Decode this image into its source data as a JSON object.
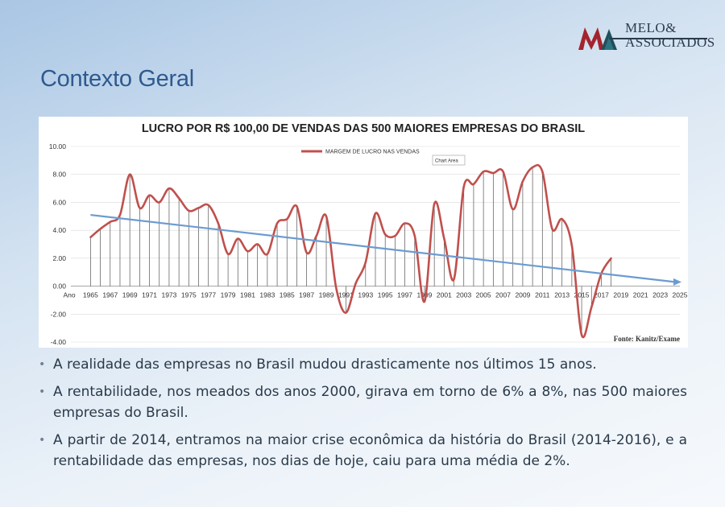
{
  "logo": {
    "line1": "MELO&",
    "line2": "ASSOCIADOS"
  },
  "header": {
    "title": "Contexto Geral"
  },
  "chart_data": {
    "type": "line",
    "title": "LUCRO POR R$ 100,00 DE VENDAS DAS 500 MAIORES EMPRESAS DO BRASIL",
    "legend": "MARGEM DE LUCRO NAS VENDAS",
    "legend_placement": "top-center",
    "annotation": "Chart Area",
    "source": "Fonte: Kanitz/Exame",
    "x_label_first": "Ano",
    "x_tick_labels": [
      "1965",
      "1967",
      "1969",
      "1971",
      "1973",
      "1975",
      "1977",
      "1979",
      "1981",
      "1983",
      "1985",
      "1987",
      "1989",
      "1991",
      "1993",
      "1995",
      "1997",
      "1999",
      "2001",
      "2003",
      "2005",
      "2007",
      "2009",
      "2011",
      "2013",
      "2015",
      "2017",
      "2019",
      "2021",
      "2023",
      "2025"
    ],
    "y_tick_labels": [
      "10.00",
      "8.00",
      "6.00",
      "4.00",
      "2.00",
      "0.00",
      "-2.00",
      "-4.00"
    ],
    "ylim": [
      -4,
      10
    ],
    "xlim": [
      1963,
      2025
    ],
    "grid": true,
    "series": [
      {
        "name": "MARGEM DE LUCRO NAS VENDAS",
        "color": "#c0504d",
        "x": [
          1965,
          1966,
          1967,
          1968,
          1969,
          1970,
          1971,
          1972,
          1973,
          1974,
          1975,
          1976,
          1977,
          1978,
          1979,
          1980,
          1981,
          1982,
          1983,
          1984,
          1985,
          1986,
          1987,
          1988,
          1989,
          1990,
          1991,
          1992,
          1993,
          1994,
          1995,
          1996,
          1997,
          1998,
          1999,
          2000,
          2001,
          2002,
          2003,
          2004,
          2005,
          2006,
          2007,
          2008,
          2009,
          2010,
          2011,
          2012,
          2013,
          2014,
          2015,
          2016,
          2017,
          2018
        ],
        "y": [
          3.5,
          4.1,
          4.6,
          5.1,
          8.0,
          5.6,
          6.5,
          6.0,
          7.0,
          6.3,
          5.4,
          5.6,
          5.8,
          4.5,
          2.3,
          3.4,
          2.5,
          3.0,
          2.3,
          4.5,
          4.8,
          5.7,
          2.4,
          3.6,
          5.0,
          -0.1,
          -1.9,
          0.2,
          1.7,
          5.2,
          3.7,
          3.6,
          4.5,
          3.6,
          -1.1,
          5.9,
          3.4,
          0.5,
          7.1,
          7.3,
          8.2,
          8.1,
          8.2,
          5.5,
          7.5,
          8.5,
          8.2,
          4.1,
          4.8,
          2.9,
          -3.5,
          -1.5,
          0.9,
          2.0
        ]
      },
      {
        "name": "",
        "type": "trendline",
        "color": "#6b9bd1",
        "x": [
          1965,
          2025
        ],
        "y": [
          5.1,
          0.3
        ]
      }
    ]
  },
  "bullets": [
    "A realidade das empresas no Brasil mudou drasticamente nos últimos 15 anos.",
    "A rentabilidade, nos meados dos anos 2000, girava em torno de 6% a 8%, nas 500 maiores empresas do Brasil.",
    "A partir de 2014, entramos na maior crise econômica da história do Brasil (2014-2016), e a rentabilidade das empresas, nos dias de hoje, caiu para uma média de 2%."
  ]
}
